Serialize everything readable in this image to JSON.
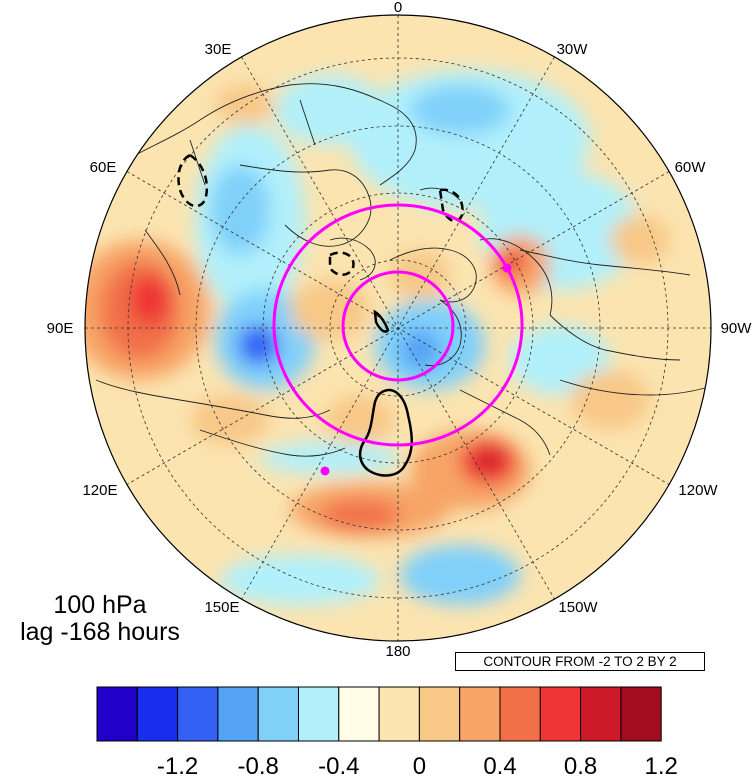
{
  "panel": {
    "level": "100 hPa",
    "lag": "lag -168 hours"
  },
  "contour_info": "CONTOUR FROM -2 TO 2 BY 2",
  "longitude_labels": {
    "top": "0",
    "top_right": "30W",
    "right_upper": "60W",
    "right": "90W",
    "right_lower": "120W",
    "bottom_right": "150W",
    "bottom": "180",
    "bottom_left": "150E",
    "left_lower": "120E",
    "left": "90E",
    "left_upper": "60E",
    "top_left": "30E"
  },
  "colorbar": {
    "colors": [
      "#2100c7",
      "#1a2ef0",
      "#3361f6",
      "#54a3f7",
      "#80d0fa",
      "#b1f0fb",
      "#fffde6",
      "#fbe4b0",
      "#f8c887",
      "#f7a466",
      "#f17048",
      "#ee3434",
      "#cc1a2a",
      "#a10d1f"
    ],
    "tick_labels": [
      "-1.2",
      "-0.8",
      "-0.4",
      "0",
      "0.4",
      "0.8",
      "1.2"
    ]
  },
  "map": {
    "projection": "north-polar-stereographic",
    "field_colors": {
      "ocean_warm": "#fbe4b0",
      "neutral": "#fffde6",
      "cool": "#b1f0fb",
      "blue": "#80d0fa",
      "deep_blue": "#3361f6",
      "warm": "#f8c887",
      "orange": "#f7a466",
      "red": "#ee3434",
      "dark_red": "#cc1a2a"
    },
    "ring_color": "#ff00ff",
    "contour_color": "#000000"
  }
}
